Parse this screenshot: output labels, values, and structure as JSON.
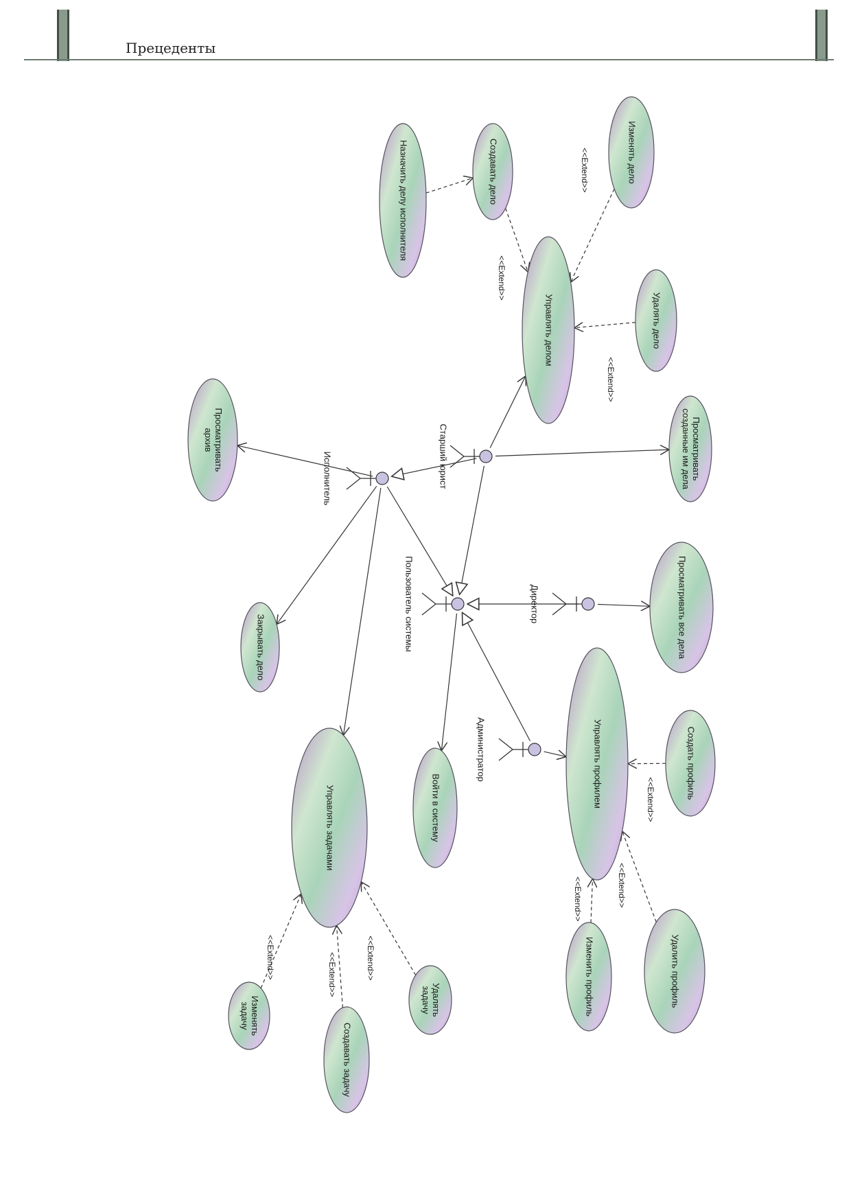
{
  "header": {
    "title": "Прецеденты"
  },
  "colors": {
    "ellipse_stroke": "#55525e",
    "gradient": [
      "#b993c8",
      "#cfe6cf",
      "#a9d4b9",
      "#d7c4e6"
    ],
    "actor_head": "#c9c2e0",
    "line": "#333333"
  },
  "actors": [
    {
      "id": "senior",
      "label": "Старший юрист"
    },
    {
      "id": "executor",
      "label": "Исполнитель"
    },
    {
      "id": "user",
      "label": "Пользователь системы"
    },
    {
      "id": "director",
      "label": "Директор"
    },
    {
      "id": "admin",
      "label": "Администратор"
    }
  ],
  "usecases": [
    {
      "id": "assign",
      "label": [
        "Назначить делу исполнителя"
      ]
    },
    {
      "id": "create_case",
      "label": [
        "Создавать дело"
      ]
    },
    {
      "id": "edit_case",
      "label": [
        "Изменять дело"
      ]
    },
    {
      "id": "manage_case",
      "label": [
        "Управлять делом"
      ]
    },
    {
      "id": "delete_case",
      "label": [
        "Удалять дело"
      ]
    },
    {
      "id": "view_created",
      "label": [
        "Просматривать",
        "созданные им дела"
      ]
    },
    {
      "id": "archive",
      "label": [
        "Просматривать",
        "архив"
      ]
    },
    {
      "id": "close_case",
      "label": [
        "Закрывать дело"
      ]
    },
    {
      "id": "login",
      "label": [
        "Войти в систему"
      ]
    },
    {
      "id": "view_all",
      "label": [
        "Просматривать все дела"
      ]
    },
    {
      "id": "manage_profile",
      "label": [
        "Управлять профилем"
      ]
    },
    {
      "id": "create_profile",
      "label": [
        "Создать профиль"
      ]
    },
    {
      "id": "delete_profile",
      "label": [
        "Удалить профиль"
      ]
    },
    {
      "id": "edit_profile",
      "label": [
        "Изменить профиль"
      ]
    },
    {
      "id": "manage_tasks",
      "label": [
        "Управлять задачами"
      ]
    },
    {
      "id": "delete_task",
      "label": [
        "Удалять",
        "задачу"
      ]
    },
    {
      "id": "create_task",
      "label": [
        "Создавать задачу"
      ]
    },
    {
      "id": "edit_task",
      "label": [
        "Изменять",
        "задачу"
      ]
    }
  ],
  "extend_label": "<<Extend>>",
  "relations": [
    {
      "from": "assign",
      "to": "create_case",
      "kind": "dependency"
    },
    {
      "from": "create_case",
      "to": "manage_case",
      "kind": "extend"
    },
    {
      "from": "edit_case",
      "to": "manage_case",
      "kind": "extend"
    },
    {
      "from": "delete_case",
      "to": "manage_case",
      "kind": "extend"
    },
    {
      "from": "senior",
      "to": "manage_case",
      "kind": "association"
    },
    {
      "from": "senior",
      "to": "view_created",
      "kind": "association"
    },
    {
      "from": "senior",
      "to": "executor",
      "kind": "generalization"
    },
    {
      "from": "senior",
      "to": "user",
      "kind": "generalization"
    },
    {
      "from": "executor",
      "to": "archive",
      "kind": "association"
    },
    {
      "from": "executor",
      "to": "user",
      "kind": "generalization"
    },
    {
      "from": "executor",
      "to": "close_case",
      "kind": "association"
    },
    {
      "from": "executor",
      "to": "manage_tasks",
      "kind": "association"
    },
    {
      "from": "director",
      "to": "user",
      "kind": "generalization"
    },
    {
      "from": "director",
      "to": "view_all",
      "kind": "association"
    },
    {
      "from": "admin",
      "to": "user",
      "kind": "generalization"
    },
    {
      "from": "admin",
      "to": "manage_profile",
      "kind": "association"
    },
    {
      "from": "user",
      "to": "login",
      "kind": "association"
    },
    {
      "from": "create_profile",
      "to": "manage_profile",
      "kind": "extend"
    },
    {
      "from": "delete_profile",
      "to": "manage_profile",
      "kind": "extend"
    },
    {
      "from": "edit_profile",
      "to": "manage_profile",
      "kind": "extend"
    },
    {
      "from": "delete_task",
      "to": "manage_tasks",
      "kind": "extend"
    },
    {
      "from": "create_task",
      "to": "manage_tasks",
      "kind": "extend"
    },
    {
      "from": "edit_task",
      "to": "manage_tasks",
      "kind": "extend"
    }
  ]
}
